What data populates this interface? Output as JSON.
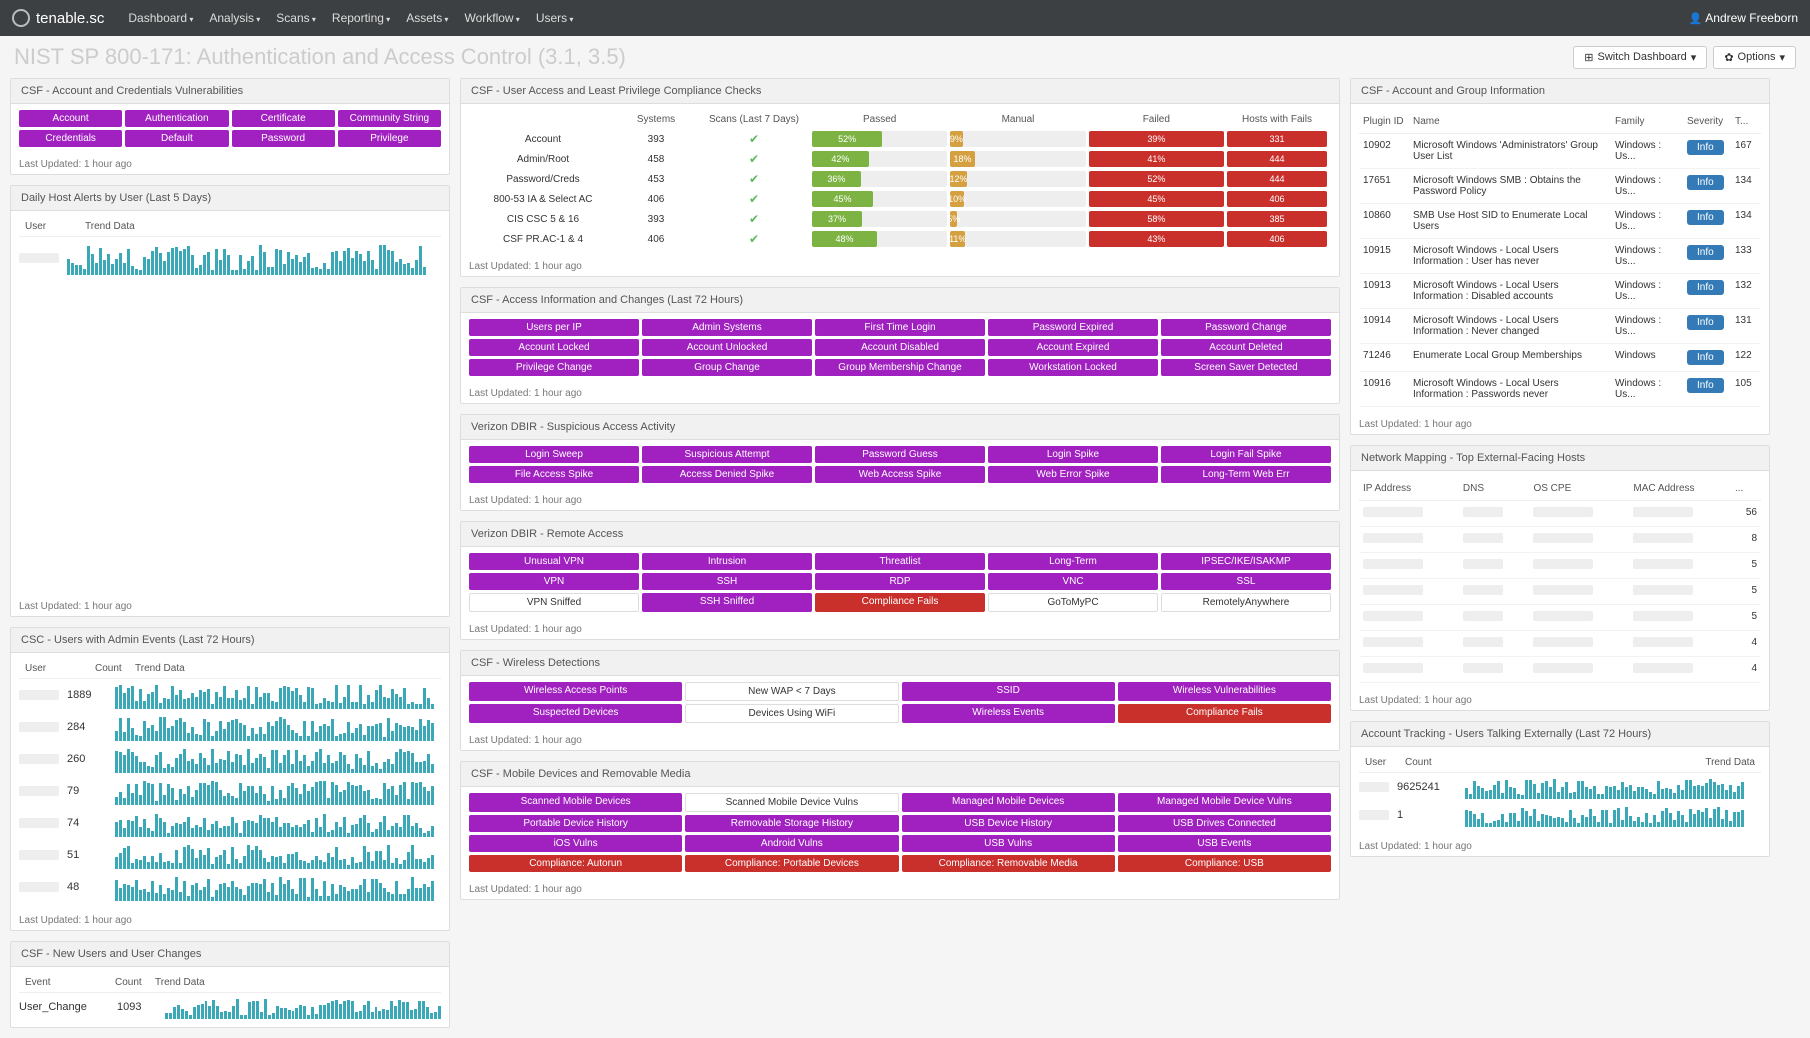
{
  "nav": {
    "brand": "tenable.sc",
    "items": [
      "Dashboard",
      "Analysis",
      "Scans",
      "Reporting",
      "Assets",
      "Workflow",
      "Users"
    ],
    "user": "Andrew Freeborn"
  },
  "header": {
    "title": "NIST SP 800-171: Authentication and Access Control (3.1, 3.5)",
    "switch": "Switch Dashboard",
    "options": "Options"
  },
  "updated": "Last Updated: 1 hour ago",
  "credVulns": {
    "title": "CSF - Account and Credentials Vulnerabilities",
    "pills": [
      "Account",
      "Authentication",
      "Certificate",
      "Community String",
      "Credentials",
      "Default",
      "Password",
      "Privilege"
    ]
  },
  "hostAlerts": {
    "title": "Daily Host Alerts by User (Last 5 Days)",
    "cols": [
      "User",
      "Trend Data"
    ]
  },
  "adminEvents": {
    "title": "CSC - Users with Admin Events (Last 72 Hours)",
    "cols": [
      "User",
      "Count",
      "Trend Data"
    ],
    "rows": [
      {
        "count": 1889
      },
      {
        "count": 284
      },
      {
        "count": 260
      },
      {
        "count": 79
      },
      {
        "count": 74
      },
      {
        "count": 51
      },
      {
        "count": 48
      }
    ]
  },
  "userChanges": {
    "title": "CSF - New Users and User Changes",
    "cols": [
      "Event",
      "Count",
      "Trend Data"
    ],
    "rows": [
      {
        "event": "User_Change",
        "count": 1093
      }
    ]
  },
  "compliance": {
    "title": "CSF - User Access and Least Privilege Compliance Checks",
    "cols": [
      "",
      "Systems",
      "Scans (Last 7 Days)",
      "Passed",
      "Manual",
      "Failed",
      "Hosts with Fails"
    ],
    "rows": [
      {
        "label": "Account",
        "systems": 393,
        "passed": 52,
        "manual": 9,
        "failed": 39,
        "hosts": 331
      },
      {
        "label": "Admin/Root",
        "systems": 458,
        "passed": 42,
        "manual": 18,
        "failed": 41,
        "hosts": 444
      },
      {
        "label": "Password/Creds",
        "systems": 453,
        "passed": 36,
        "manual": 12,
        "failed": 52,
        "hosts": 444
      },
      {
        "label": "800-53 IA & Select AC",
        "systems": 406,
        "passed": 45,
        "manual": 10,
        "failed": 45,
        "hosts": 406
      },
      {
        "label": "CIS CSC 5 & 16",
        "systems": 393,
        "passed": 37,
        "manual": 5,
        "failed": 58,
        "hosts": 385
      },
      {
        "label": "CSF PR.AC-1 & 4",
        "systems": 406,
        "passed": 48,
        "manual": 11,
        "failed": 43,
        "hosts": 406
      }
    ]
  },
  "accessInfo": {
    "title": "CSF - Access Information and Changes (Last 72 Hours)",
    "pills": [
      "Users per IP",
      "Admin Systems",
      "First Time Login",
      "Password Expired",
      "Password Change",
      "Account Locked",
      "Account Unlocked",
      "Account Disabled",
      "Account Expired",
      "Account Deleted",
      "Privilege Change",
      "Group Change",
      "Group Membership Change",
      "Workstation Locked",
      "Screen Saver Detected"
    ]
  },
  "dbirAccess": {
    "title": "Verizon DBIR - Suspicious Access Activity",
    "pills": [
      "Login Sweep",
      "Suspicious Attempt",
      "Password Guess",
      "Login Spike",
      "Login Fail Spike",
      "File Access Spike",
      "Access Denied Spike",
      "Web Access Spike",
      "Web Error Spike",
      "Long-Term Web Err"
    ]
  },
  "dbirRemote": {
    "title": "Verizon DBIR - Remote Access",
    "rows": [
      [
        {
          "t": "Unusual VPN",
          "c": "p"
        },
        {
          "t": "Intrusion",
          "c": "p"
        },
        {
          "t": "Threatlist",
          "c": "p"
        },
        {
          "t": "Long-Term",
          "c": "p"
        },
        {
          "t": "IPSEC/IKE/ISAKMP",
          "c": "p"
        }
      ],
      [
        {
          "t": "VPN",
          "c": "p"
        },
        {
          "t": "SSH",
          "c": "p"
        },
        {
          "t": "RDP",
          "c": "p"
        },
        {
          "t": "VNC",
          "c": "p"
        },
        {
          "t": "SSL",
          "c": "p"
        }
      ],
      [
        {
          "t": "VPN Sniffed",
          "c": "w"
        },
        {
          "t": "SSH Sniffed",
          "c": "p"
        },
        {
          "t": "Compliance Fails",
          "c": "r"
        },
        {
          "t": "GoToMyPC",
          "c": "w"
        },
        {
          "t": "RemotelyAnywhere",
          "c": "w"
        }
      ]
    ]
  },
  "wireless": {
    "title": "CSF - Wireless Detections",
    "rows": [
      [
        {
          "t": "Wireless Access Points",
          "c": "p"
        },
        {
          "t": "New WAP < 7 Days",
          "c": "w"
        },
        {
          "t": "SSID",
          "c": "p"
        },
        {
          "t": "Wireless Vulnerabilities",
          "c": "p"
        }
      ],
      [
        {
          "t": "Suspected Devices",
          "c": "p"
        },
        {
          "t": "Devices Using WiFi",
          "c": "w"
        },
        {
          "t": "Wireless Events",
          "c": "p"
        },
        {
          "t": "Compliance Fails",
          "c": "r"
        }
      ]
    ]
  },
  "mobile": {
    "title": "CSF - Mobile Devices and Removable Media",
    "rows": [
      [
        {
          "t": "Scanned Mobile Devices",
          "c": "p"
        },
        {
          "t": "Scanned Mobile Device Vulns",
          "c": "w"
        },
        {
          "t": "Managed Mobile Devices",
          "c": "p"
        },
        {
          "t": "Managed Mobile Device Vulns",
          "c": "p"
        }
      ],
      [
        {
          "t": "Portable Device History",
          "c": "p"
        },
        {
          "t": "Removable Storage History",
          "c": "p"
        },
        {
          "t": "USB Device History",
          "c": "p"
        },
        {
          "t": "USB Drives Connected",
          "c": "p"
        }
      ],
      [
        {
          "t": "iOS Vulns",
          "c": "p"
        },
        {
          "t": "Android Vulns",
          "c": "p"
        },
        {
          "t": "USB Vulns",
          "c": "p"
        },
        {
          "t": "USB Events",
          "c": "p"
        }
      ],
      [
        {
          "t": "Compliance: Autorun",
          "c": "r"
        },
        {
          "t": "Compliance: Portable Devices",
          "c": "r"
        },
        {
          "t": "Compliance: Removable Media",
          "c": "r"
        },
        {
          "t": "Compliance: USB",
          "c": "r"
        }
      ]
    ]
  },
  "acctGroup": {
    "title": "CSF - Account and Group Information",
    "cols": [
      "Plugin ID",
      "Name",
      "Family",
      "Severity",
      "T..."
    ],
    "rows": [
      {
        "id": 10902,
        "name": "Microsoft Windows 'Administrators' Group User List",
        "family": "Windows : Us...",
        "t": 167
      },
      {
        "id": 17651,
        "name": "Microsoft Windows SMB : Obtains the Password Policy",
        "family": "Windows : Us...",
        "t": 134
      },
      {
        "id": 10860,
        "name": "SMB Use Host SID to Enumerate Local Users",
        "family": "Windows : Us...",
        "t": 134
      },
      {
        "id": 10915,
        "name": "Microsoft Windows - Local Users Information : User has never",
        "family": "Windows : Us...",
        "t": 133
      },
      {
        "id": 10913,
        "name": "Microsoft Windows - Local Users Information : Disabled accounts",
        "family": "Windows : Us...",
        "t": 132
      },
      {
        "id": 10914,
        "name": "Microsoft Windows - Local Users Information : Never changed",
        "family": "Windows : Us...",
        "t": 131
      },
      {
        "id": 71246,
        "name": "Enumerate Local Group Memberships",
        "family": "Windows",
        "t": 122
      },
      {
        "id": 10916,
        "name": "Microsoft Windows - Local Users Information : Passwords never",
        "family": "Windows : Us...",
        "t": 105
      }
    ],
    "severity": "Info"
  },
  "netMap": {
    "title": "Network Mapping - Top External-Facing Hosts",
    "cols": [
      "IP Address",
      "DNS",
      "OS CPE",
      "MAC Address",
      "..."
    ],
    "counts": [
      56,
      8,
      5,
      5,
      5,
      4,
      4
    ]
  },
  "tracking": {
    "title": "Account Tracking - Users Talking Externally (Last 72 Hours)",
    "cols": [
      "User",
      "Count",
      "Trend Data"
    ],
    "rows": [
      {
        "count": 9625241
      },
      {
        "count": 1
      }
    ]
  }
}
